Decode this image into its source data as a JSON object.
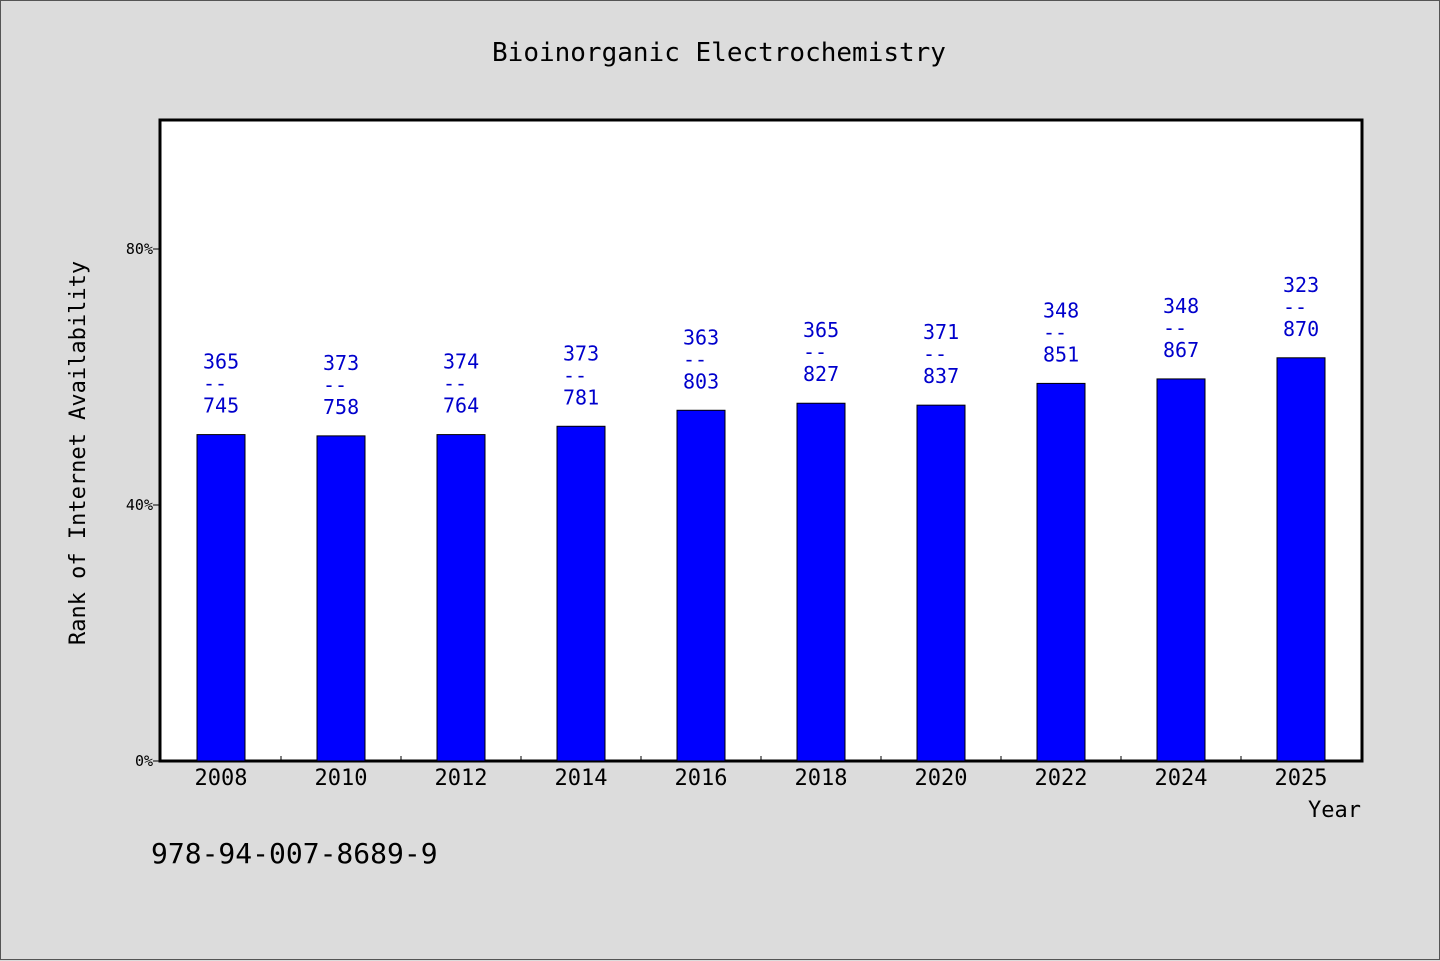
{
  "chart_data": {
    "type": "bar",
    "title": "Bioinorganic Electrochemistry",
    "xlabel": "Year",
    "ylabel": "Rank of Internet Availability",
    "categories": [
      "2008",
      "2010",
      "2012",
      "2014",
      "2016",
      "2018",
      "2020",
      "2022",
      "2024",
      "2025"
    ],
    "values": [
      51,
      50.8,
      51,
      52.3,
      54.8,
      55.9,
      55.6,
      59,
      59.7,
      63
    ],
    "value_unit": "%",
    "data_labels": [
      [
        "365",
        "--",
        "745"
      ],
      [
        "373",
        "--",
        "758"
      ],
      [
        "374",
        "--",
        "764"
      ],
      [
        "373",
        "--",
        "781"
      ],
      [
        "363",
        "--",
        "803"
      ],
      [
        "365",
        "--",
        "827"
      ],
      [
        "371",
        "--",
        "837"
      ],
      [
        "348",
        "--",
        "851"
      ],
      [
        "348",
        "--",
        "867"
      ],
      [
        "323",
        "--",
        "870"
      ]
    ],
    "yticks": [
      "0%",
      "40%",
      "80%"
    ],
    "ytick_values": [
      0,
      40,
      80
    ],
    "ylim": [
      0,
      100
    ],
    "grid": false,
    "legend": "none",
    "bar_color": "#0000ff",
    "label_color": "#0000cc",
    "plot_background": "#ffffff",
    "page_background": "#dcdcdc"
  },
  "footer": {
    "isbn": "978-94-007-8689-9"
  }
}
